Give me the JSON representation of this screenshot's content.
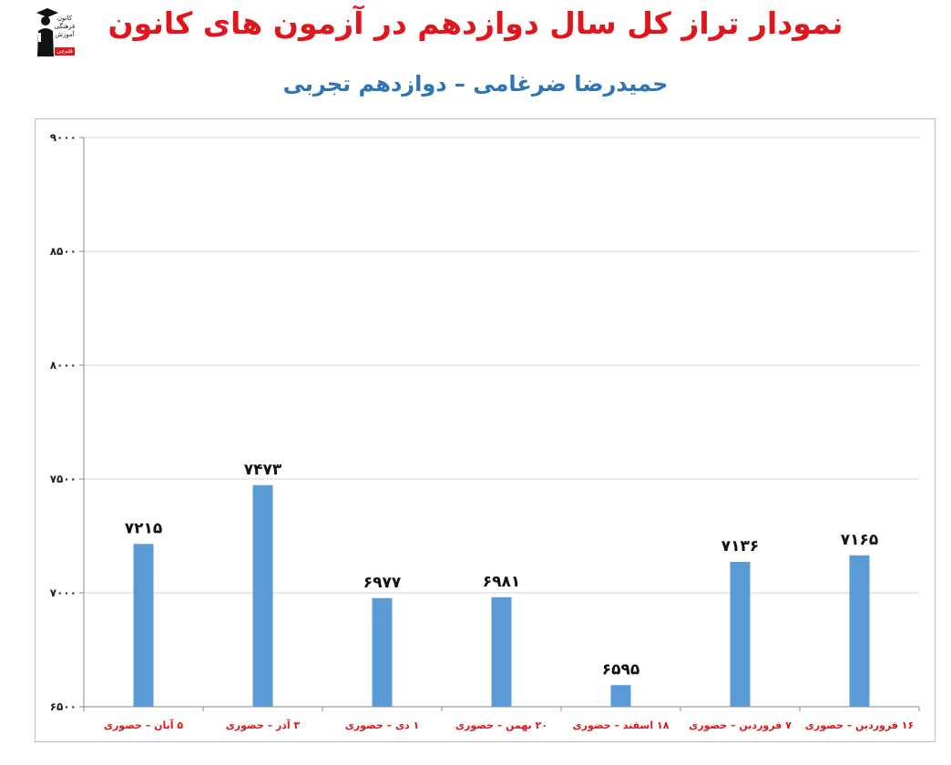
{
  "logo": {
    "lines": [
      "کانون",
      "فرهنگی",
      "آموزش"
    ],
    "badge": "قلم‌چی"
  },
  "chart_data": {
    "type": "bar",
    "title": "نمودار تراز کل سال دوازدهم در آزمون های کانون",
    "subtitle": "حمیدرضا ضرغامی – دوازدهم تجربی",
    "categories": [
      "۵ آبان – حضوری",
      "۳ آذر – حضوری",
      "۱ دی – حضوری",
      "۲۰ بهمن – حضوری",
      "۱۸ اسفند – حضوری",
      "۷ فروردین – حضوری",
      "۱۶ فروردین – حضوری"
    ],
    "values": [
      7215,
      7473,
      6977,
      6981,
      6595,
      7136,
      7165
    ],
    "value_labels": [
      "۷۲۱۵",
      "۷۴۷۳",
      "۶۹۷۷",
      "۶۹۸۱",
      "۶۵۹۵",
      "۷۱۳۶",
      "۷۱۶۵"
    ],
    "ylim": [
      6500,
      9000
    ],
    "yticks": [
      6500,
      7000,
      7500,
      8000,
      8500,
      9000
    ],
    "ytick_labels": [
      "۶۵۰۰",
      "۷۰۰۰",
      "۷۵۰۰",
      "۸۰۰۰",
      "۸۵۰۰",
      "۹۰۰۰"
    ],
    "grid": true,
    "legend": "none",
    "colors": {
      "bar": "#5b9bd5",
      "grid": "#c5d7ea",
      "title": "#e0161c",
      "subtitle": "#2e75b6",
      "category_label": "#e0161c"
    }
  }
}
